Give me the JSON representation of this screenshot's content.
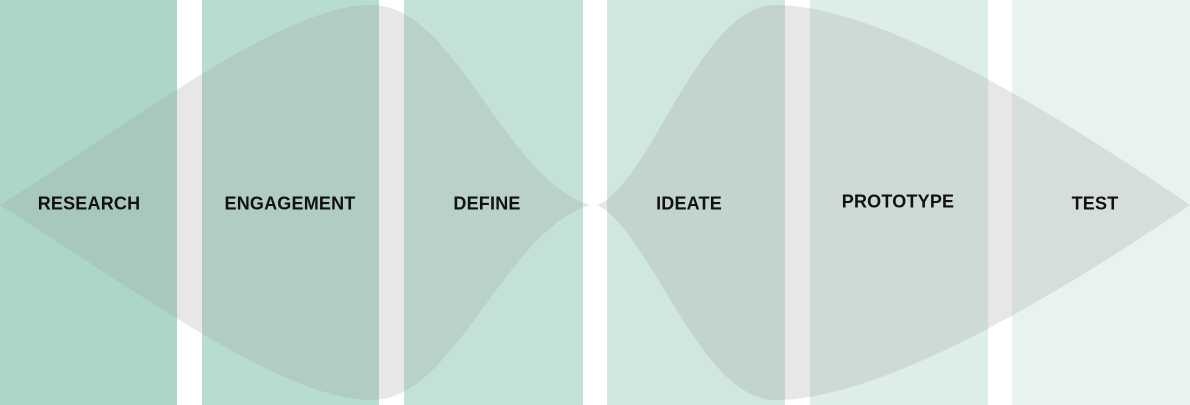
{
  "diagram": {
    "type": "double-diamond",
    "phases": [
      {
        "label": "RESEARCH",
        "color": "#acd6ca"
      },
      {
        "label": "ENGAGEMENT",
        "color": "#b7dcd1"
      },
      {
        "label": "DEFINE",
        "color": "#c4e1d9"
      },
      {
        "label": "IDEATE",
        "color": "#d0e7e1"
      },
      {
        "label": "PROTOTYPE",
        "color": "#ddeee9"
      },
      {
        "label": "TEST",
        "color": "#e8f3f0"
      }
    ],
    "overlay_color": "#9a9a9a"
  }
}
